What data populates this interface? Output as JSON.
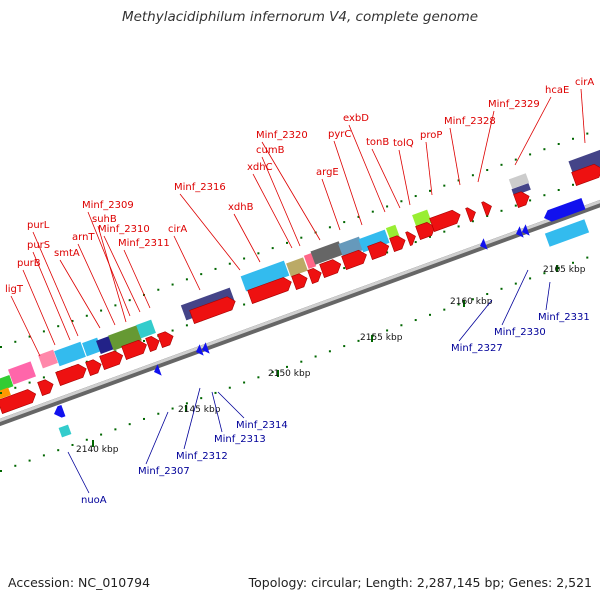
{
  "title": "Methylacidiphilum infernorum V4, complete genome",
  "footer": {
    "accession": "Accession: NC_010794",
    "topology": "Topology: circular; Length: 2,287,145 bp; Genes: 2,521"
  },
  "colors": {
    "forward_gene": "#ee1111",
    "reverse_gene": "#1111ee",
    "forward_label": "#dd0000",
    "reverse_label": "#000099",
    "backbone": "#999999",
    "tick": "#006600"
  },
  "ticks": [
    "2140 kbp",
    "2145 kbp",
    "2150 kbp",
    "2155 kbp",
    "2160 kbp",
    "2165 kbp"
  ],
  "forward_labels": [
    "ligT",
    "purB",
    "purS",
    "purL",
    "smtA",
    "arnT",
    "suhB",
    "Minf_2309",
    "Minf_2310",
    "Minf_2311",
    "cirA",
    "Minf_2316",
    "xdhB",
    "xdhC",
    "cumB",
    "Minf_2320",
    "argE",
    "pyrC",
    "exbD",
    "tonB",
    "tolQ",
    "proP",
    "Minf_2328",
    "Minf_2329",
    "hcaE",
    "cirA"
  ],
  "reverse_labels": [
    "nuoA",
    "Minf_2307",
    "Minf_2312",
    "Minf_2313",
    "Minf_2314",
    "Minf_2327",
    "Minf_2330",
    "Minf_2331"
  ]
}
